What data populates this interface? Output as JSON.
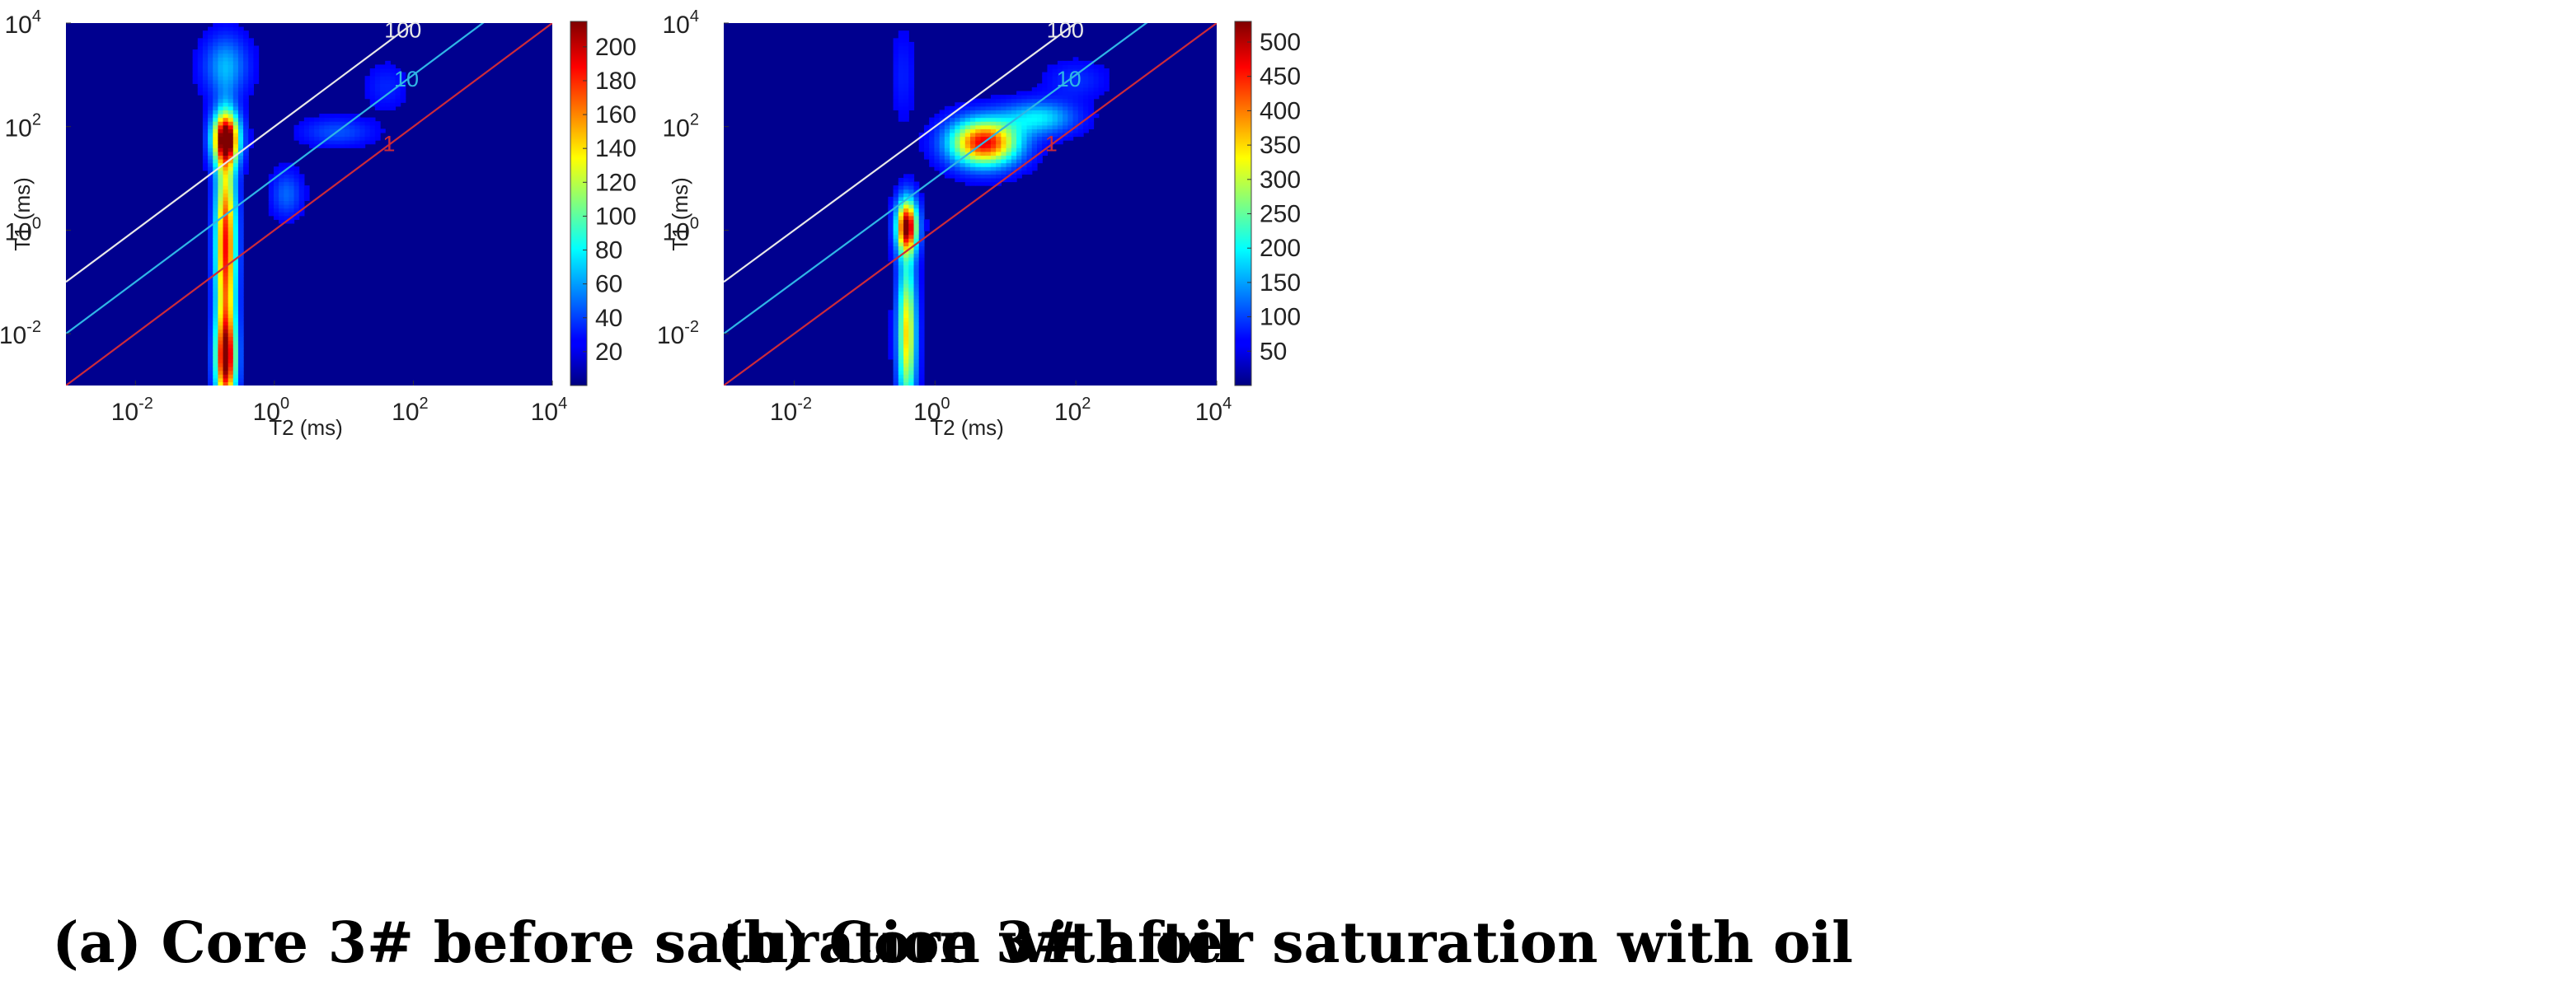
{
  "captions": {
    "a": "(a) Core 3# before saturation with oil",
    "b": "(b) Core 3# after saturation with oil"
  },
  "chart_data": [
    {
      "type": "heatmap",
      "title": "(a) Core 3# before saturation with oil",
      "xlabel": "T2 (ms)",
      "ylabel": "T1 (ms)",
      "xscale": "log",
      "yscale": "log",
      "xlim": [
        0.001,
        10000
      ],
      "ylim": [
        0.001,
        10000
      ],
      "x_ticks": [
        {
          "base": "10",
          "exp": "-2"
        },
        {
          "base": "10",
          "exp": "0"
        },
        {
          "base": "10",
          "exp": "2"
        },
        {
          "base": "10",
          "exp": "4"
        }
      ],
      "y_ticks": [
        {
          "base": "10",
          "exp": "-2"
        },
        {
          "base": "10",
          "exp": "0"
        },
        {
          "base": "10",
          "exp": "2"
        },
        {
          "base": "10",
          "exp": "4"
        }
      ],
      "colorbar": {
        "min": 0,
        "max": 215,
        "ticks": [
          "20",
          "40",
          "60",
          "80",
          "100",
          "120",
          "140",
          "160",
          "180",
          "200"
        ]
      },
      "ratio_lines": [
        {
          "label": "100",
          "ratio": 100,
          "color": "#e8e8e8"
        },
        {
          "label": "10",
          "ratio": 10,
          "color": "#2fb6e6"
        },
        {
          "label": "1",
          "ratio": 1,
          "color": "#cc2a3a"
        }
      ],
      "peaks": [
        {
          "desc": "main vertical band",
          "t2": 0.2,
          "t1": 60,
          "sig_x": 0.13,
          "sig_y": 0.34,
          "amp": 215
        },
        {
          "desc": "band lower part",
          "t2": 0.2,
          "t1": 0.5,
          "sig_x": 0.1,
          "sig_y": 1.3,
          "amp": 185
        },
        {
          "desc": "band bottom",
          "t2": 0.2,
          "t1": 0.003,
          "sig_x": 0.1,
          "sig_y": 0.6,
          "amp": 190
        },
        {
          "desc": "band upper halo",
          "t2": 0.2,
          "t1": 1500,
          "sig_x": 0.22,
          "sig_y": 0.4,
          "amp": 45
        },
        {
          "desc": "tail blob",
          "t2": 1.5,
          "t1": 5,
          "sig_x": 0.15,
          "sig_y": 0.3,
          "amp": 30
        },
        {
          "desc": "tail",
          "t2": 8,
          "t1": 80,
          "sig_x": 0.35,
          "sig_y": 0.18,
          "amp": 25
        },
        {
          "desc": "faint tail",
          "t2": 40,
          "t1": 600,
          "sig_x": 0.2,
          "sig_y": 0.3,
          "amp": 14
        }
      ]
    },
    {
      "type": "heatmap",
      "title": "(b) Core 3# after saturation with oil",
      "xlabel": "T2 (ms)",
      "ylabel": "T1 (ms)",
      "xscale": "log",
      "yscale": "log",
      "xlim": [
        0.001,
        10000
      ],
      "ylim": [
        0.001,
        10000
      ],
      "x_ticks": [
        {
          "base": "10",
          "exp": "-2"
        },
        {
          "base": "10",
          "exp": "0"
        },
        {
          "base": "10",
          "exp": "2"
        },
        {
          "base": "10",
          "exp": "4"
        }
      ],
      "y_ticks": [
        {
          "base": "10",
          "exp": "-2"
        },
        {
          "base": "10",
          "exp": "0"
        },
        {
          "base": "10",
          "exp": "2"
        },
        {
          "base": "10",
          "exp": "4"
        }
      ],
      "colorbar": {
        "min": 0,
        "max": 530,
        "ticks": [
          "50",
          "100",
          "150",
          "200",
          "250",
          "300",
          "350",
          "400",
          "450",
          "500"
        ]
      },
      "ratio_lines": [
        {
          "label": "100",
          "ratio": 100,
          "color": "#e8e8e8"
        },
        {
          "label": "10",
          "ratio": 10,
          "color": "#2fb6e6"
        },
        {
          "label": "1",
          "ratio": 1,
          "color": "#cc2a3a"
        }
      ],
      "peaks": [
        {
          "desc": "water peak",
          "t2": 0.4,
          "t1": 1.2,
          "sig_x": 0.1,
          "sig_y": 0.35,
          "amp": 520
        },
        {
          "desc": "water column",
          "t2": 0.4,
          "t1": 0.01,
          "sig_x": 0.09,
          "sig_y": 1.0,
          "amp": 330
        },
        {
          "desc": "oil peak",
          "t2": 5,
          "t1": 50,
          "sig_x": 0.33,
          "sig_y": 0.3,
          "amp": 470
        },
        {
          "desc": "oil tail",
          "t2": 30,
          "t1": 150,
          "sig_x": 0.35,
          "sig_y": 0.22,
          "amp": 150
        },
        {
          "desc": "oil tail end",
          "t2": 100,
          "t1": 800,
          "sig_x": 0.3,
          "sig_y": 0.25,
          "amp": 40
        },
        {
          "desc": "faint vertical streak",
          "t2": 0.35,
          "t1": 1000,
          "sig_x": 0.12,
          "sig_y": 0.6,
          "amp": 30
        }
      ]
    }
  ]
}
